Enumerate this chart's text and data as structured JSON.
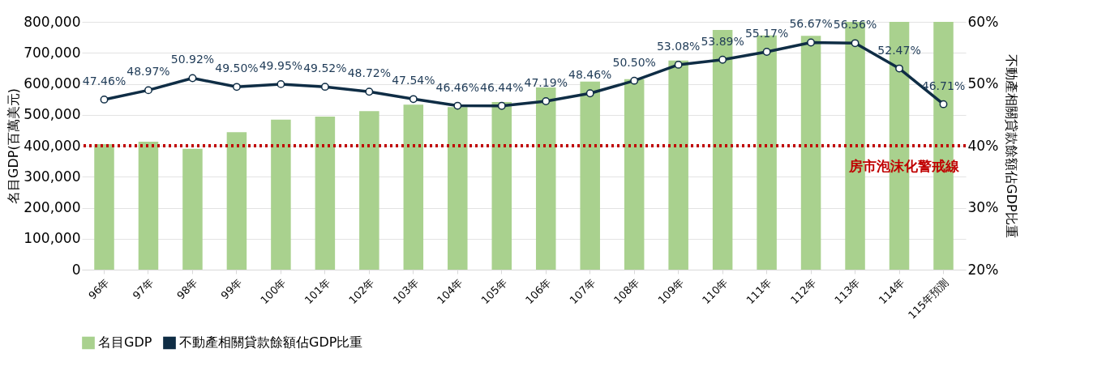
{
  "chart_data": {
    "type": "bar",
    "categories": [
      "96年",
      "97年",
      "98年",
      "99年",
      "100年",
      "101年",
      "102年",
      "103年",
      "104年",
      "105年",
      "106年",
      "107年",
      "108年",
      "109年",
      "110年",
      "111年",
      "112年",
      "113年",
      "114年",
      "115年預測"
    ],
    "ylabel": "名目GDP(百萬美元)",
    "y2label": "不動產相關貸款餘額佔GDP比重",
    "ylim": [
      0,
      800000
    ],
    "yticks": [
      {
        "value": 0,
        "label": "0"
      },
      {
        "value": 100000,
        "label": "100,000"
      },
      {
        "value": 200000,
        "label": "200,000"
      },
      {
        "value": 300000,
        "label": "300,000"
      },
      {
        "value": 400000,
        "label": "400,000"
      },
      {
        "value": 500000,
        "label": "500,000"
      },
      {
        "value": 600000,
        "label": "600,000"
      },
      {
        "value": 700000,
        "label": "700,000"
      },
      {
        "value": 800000,
        "label": "800,000"
      }
    ],
    "y2lim": [
      20,
      60
    ],
    "y2ticks": [
      {
        "value": 20,
        "label": "20%"
      },
      {
        "value": 30,
        "label": "30%"
      },
      {
        "value": 40,
        "label": "40%"
      },
      {
        "value": 50,
        "label": "50%"
      },
      {
        "value": 60,
        "label": "60%"
      }
    ],
    "series": [
      {
        "name": "名目GDP",
        "color": "#a9d18e",
        "values": [
          405000,
          413000,
          390000,
          444000,
          484000,
          494000,
          512000,
          533000,
          525000,
          541000,
          588000,
          607000,
          615000,
          675000,
          774000,
          756000,
          755000,
          800000,
          800000,
          800000
        ]
      },
      {
        "name": "不動產相關貸款餘額佔GDP比重",
        "type": "line",
        "axis": "y2",
        "color": "#0f2d45",
        "marker": "circle",
        "values": [
          47.46,
          48.97,
          50.92,
          49.5,
          49.95,
          49.52,
          48.72,
          47.54,
          46.46,
          46.44,
          47.19,
          48.46,
          50.5,
          53.08,
          53.89,
          55.17,
          56.67,
          56.56,
          52.47,
          46.71
        ],
        "value_labels": [
          "47.46%",
          "48.97%",
          "50.92%",
          "49.50%",
          "49.95%",
          "49.52%",
          "48.72%",
          "47.54%",
          "46.46%",
          "46.44%",
          "47.19%",
          "48.46%",
          "50.50%",
          "53.08%",
          "53.89%",
          "55.17%",
          "56.67%",
          "56.56%",
          "52.47%",
          "46.71%"
        ]
      }
    ],
    "ref_lines": [
      {
        "axis": "y2",
        "value": 40,
        "label": "房市泡沫化警戒線",
        "color": "#c00000",
        "line_style": "dotted"
      }
    ],
    "grid": "y",
    "legend": "bottom"
  }
}
